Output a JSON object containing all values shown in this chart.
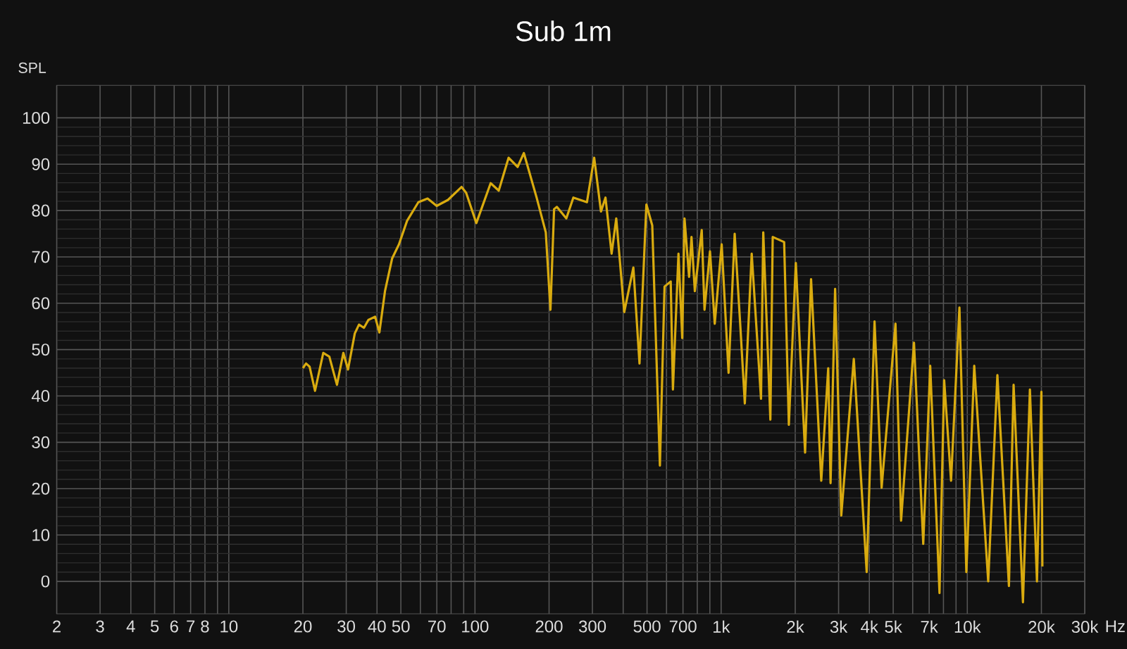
{
  "chart_data": {
    "type": "line",
    "title": "Sub 1m",
    "ylabel": "SPL",
    "color": "#d9ab0f",
    "log": "x",
    "grid": true,
    "xlim": [
      2,
      30000
    ],
    "ylim": [
      -7,
      107
    ],
    "xticks": [
      2,
      3,
      4,
      5,
      6,
      7,
      8,
      {
        "value": 9,
        "label": null
      },
      10,
      20,
      30,
      40,
      50,
      {
        "value": 60,
        "label": null
      },
      70,
      {
        "value": 80,
        "label": null
      },
      {
        "value": 90,
        "label": null
      },
      100,
      200,
      300,
      {
        "value": 400,
        "label": null
      },
      500,
      {
        "value": 600,
        "label": null
      },
      700,
      {
        "value": 800,
        "label": null
      },
      {
        "value": 900,
        "label": null
      },
      {
        "value": 1000,
        "label": "1k"
      },
      {
        "value": 2000,
        "label": "2k"
      },
      {
        "value": 3000,
        "label": "3k"
      },
      {
        "value": 4000,
        "label": "4k"
      },
      {
        "value": 5000,
        "label": "5k"
      },
      {
        "value": 6000,
        "label": null
      },
      {
        "value": 7000,
        "label": "7k"
      },
      {
        "value": 8000,
        "label": null
      },
      {
        "value": 9000,
        "label": null
      },
      {
        "value": 10000,
        "label": "10k"
      },
      {
        "value": 20000,
        "label": "20k"
      },
      {
        "value": 30000,
        "label": "30k"
      }
    ],
    "xlabel": "Hz",
    "yticks": [
      0,
      10,
      20,
      30,
      40,
      50,
      60,
      70,
      80,
      90,
      100
    ],
    "x": [
      20,
      20.6,
      21.3,
      22.4,
      24.2,
      25.6,
      27.5,
      29.2,
      30.5,
      32.5,
      33.8,
      35.4,
      36.9,
      39.3,
      40.9,
      43.1,
      46.1,
      49.1,
      53,
      58.9,
      64.2,
      69.9,
      77.7,
      88.2,
      92.1,
      101.3,
      115.8,
      124.9,
      137,
      149,
      158,
      178,
      194,
      202.6,
      209.6,
      215,
      235,
      251,
      285,
      305,
      325,
      339,
      359,
      375,
      404,
      440,
      466,
      497,
      525,
      564,
      589,
      624,
      637,
      671,
      695,
      710,
      741,
      758,
      782,
      834,
      856,
      901,
      942,
      1005,
      1072,
      1135,
      1195,
      1248,
      1331,
      1452,
      1483,
      1585,
      1620,
      1803,
      1884,
      2011,
      2193,
      2319,
      2551,
      2723,
      2783,
      2904,
      3076,
      3459,
      3902,
      4199,
      4487,
      5108,
      5383,
      6073,
      6623,
      7068,
      7711,
      8053,
      8590,
      9290,
      9910,
      10670,
      12160,
      13250,
      14760,
      15420,
      16830,
      17960,
      19190,
      20000,
      20180
    ],
    "values": [
      46,
      47,
      46.3,
      41.1,
      49.3,
      48.5,
      42.4,
      49.3,
      45.7,
      53.5,
      55.4,
      54.7,
      56.4,
      57.1,
      53.7,
      62.6,
      69.7,
      72.7,
      77.8,
      81.8,
      82.6,
      81,
      82.3,
      85.1,
      83.8,
      77.3,
      85.9,
      84.3,
      91.4,
      89.4,
      92.4,
      82.8,
      75.3,
      58.6,
      80.3,
      80.8,
      78.3,
      82.8,
      81.8,
      91.4,
      79.8,
      82.8,
      70.7,
      78.3,
      58.1,
      67.7,
      47,
      81.3,
      76.8,
      25,
      63.6,
      64.7,
      41.4,
      70.7,
      52.5,
      78.3,
      65.7,
      74.3,
      62.6,
      75.8,
      58.6,
      71.2,
      55.6,
      72.7,
      45,
      75,
      55.6,
      38.4,
      70.7,
      39.4,
      75.3,
      34.9,
      74.3,
      73.2,
      33.8,
      68.7,
      27.8,
      65.2,
      21.7,
      46,
      21.2,
      63.1,
      14.2,
      48,
      2,
      56.1,
      20.2,
      55.6,
      13.1,
      51.5,
      8.1,
      46.5,
      -2.5,
      43.4,
      21.7,
      59.1,
      2,
      46.5,
      0,
      44.5,
      -1,
      42.4,
      -4.5,
      41.4,
      0,
      40.9,
      3.2
    ]
  }
}
